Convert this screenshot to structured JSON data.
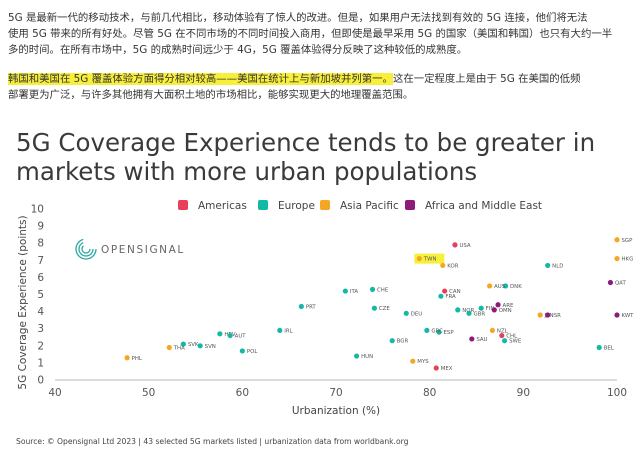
{
  "article": {
    "para1_lines": [
      "5G 是最新一代的移动技术，与前几代相比，移动体验有了惊人的改进。但是，如果用户无法找到有效的 5G 连接，他们将无法",
      "使用 5G 带来的所有好处。尽管 5G 在不同市场的不同时间投入商用，但即使是最早采用 5G 的国家（美国和韩国）也只有大约一半",
      "多的时间。在所有市场中，5G 的成熟时间远少于 4G，5G 覆盖体验得分反映了这种较低的成熟度。"
    ],
    "para2_highlight": "韩国和美国在 5G 覆盖体验方面得分相对较高——美国在统计上与新加坡并列第一。",
    "para2_rest": "这在一定程度上是由于 5G 在美国的低频",
    "para2_line2": "部署更为广泛，与许多其他拥有大面积土地的市场相比，能够实现更大的地理覆盖范围。"
  },
  "chart_data": {
    "type": "scatter",
    "title_lines": [
      "5G Coverage Experience tends to be greater in",
      "markets with more urban populations"
    ],
    "xlabel": "Urbanization (%)",
    "ylabel": "5G Coverage Experience (points)",
    "xlim": [
      40,
      100
    ],
    "ylim": [
      0,
      10
    ],
    "xticks": [
      40,
      50,
      60,
      70,
      80,
      90,
      100
    ],
    "yticks": [
      0,
      1,
      2,
      3,
      4,
      5,
      6,
      7,
      8,
      9,
      10
    ],
    "grid": false,
    "legend_position": "top",
    "logo_text": "OPENSIGNAL",
    "series": [
      {
        "name": "Americas",
        "color": "#e8405a"
      },
      {
        "name": "Europe",
        "color": "#14b8a6"
      },
      {
        "name": "Asia Pacific",
        "color": "#f5a623"
      },
      {
        "name": "Africa and Middle East",
        "color": "#8e1a7c"
      }
    ],
    "points": [
      {
        "label": "USA",
        "x": 82.7,
        "y": 7.9,
        "series": "Americas"
      },
      {
        "label": "CAN",
        "x": 81.6,
        "y": 5.2,
        "series": "Americas"
      },
      {
        "label": "CHL",
        "x": 87.7,
        "y": 2.6,
        "series": "Americas"
      },
      {
        "label": "MEX",
        "x": 80.7,
        "y": 0.7,
        "series": "Americas"
      },
      {
        "label": "PRT",
        "x": 66.3,
        "y": 4.3,
        "series": "Europe"
      },
      {
        "label": "ITA",
        "x": 71.0,
        "y": 5.2,
        "series": "Europe"
      },
      {
        "label": "CHE",
        "x": 73.9,
        "y": 5.3,
        "series": "Europe"
      },
      {
        "label": "CZE",
        "x": 74.1,
        "y": 4.2,
        "series": "Europe"
      },
      {
        "label": "DEU",
        "x": 77.5,
        "y": 3.9,
        "series": "Europe"
      },
      {
        "label": "FRA",
        "x": 81.2,
        "y": 4.9,
        "series": "Europe"
      },
      {
        "label": "NOR",
        "x": 83.0,
        "y": 4.1,
        "series": "Europe"
      },
      {
        "label": "FIN",
        "x": 85.5,
        "y": 4.2,
        "series": "Europe"
      },
      {
        "label": "GBR",
        "x": 84.2,
        "y": 3.9,
        "series": "Europe"
      },
      {
        "label": "DNK",
        "x": 88.1,
        "y": 5.5,
        "series": "Europe"
      },
      {
        "label": "NLD",
        "x": 92.6,
        "y": 6.7,
        "series": "Europe"
      },
      {
        "label": "SWE",
        "x": 88.0,
        "y": 2.3,
        "series": "Europe"
      },
      {
        "label": "ESP",
        "x": 81.0,
        "y": 2.8,
        "series": "Europe"
      },
      {
        "label": "GRC",
        "x": 79.7,
        "y": 2.9,
        "series": "Europe"
      },
      {
        "label": "BGR",
        "x": 76.0,
        "y": 2.3,
        "series": "Europe"
      },
      {
        "label": "HUN",
        "x": 72.2,
        "y": 1.4,
        "series": "Europe"
      },
      {
        "label": "IRL",
        "x": 64.0,
        "y": 2.9,
        "series": "Europe"
      },
      {
        "label": "POL",
        "x": 60.0,
        "y": 1.7,
        "series": "Europe"
      },
      {
        "label": "HRV",
        "x": 57.6,
        "y": 2.7,
        "series": "Europe"
      },
      {
        "label": "AUT",
        "x": 58.7,
        "y": 2.6,
        "series": "Europe"
      },
      {
        "label": "SVK",
        "x": 53.7,
        "y": 2.1,
        "series": "Europe"
      },
      {
        "label": "SVN",
        "x": 55.5,
        "y": 2.0,
        "series": "Europe"
      },
      {
        "label": "BEL",
        "x": 98.1,
        "y": 1.9,
        "series": "Europe"
      },
      {
        "label": "SGP",
        "x": 100.0,
        "y": 8.2,
        "series": "Asia Pacific"
      },
      {
        "label": "HKG",
        "x": 100.0,
        "y": 7.1,
        "series": "Asia Pacific"
      },
      {
        "label": "TWN",
        "x": 78.9,
        "y": 7.1,
        "series": "Asia Pacific"
      },
      {
        "label": "KOR",
        "x": 81.4,
        "y": 6.7,
        "series": "Asia Pacific"
      },
      {
        "label": "AUS",
        "x": 86.4,
        "y": 5.5,
        "series": "Asia Pacific"
      },
      {
        "label": "JPN",
        "x": 91.8,
        "y": 3.8,
        "series": "Asia Pacific"
      },
      {
        "label": "NZL",
        "x": 86.7,
        "y": 2.9,
        "series": "Asia Pacific"
      },
      {
        "label": "MYS",
        "x": 78.2,
        "y": 1.1,
        "series": "Asia Pacific"
      },
      {
        "label": "THA",
        "x": 52.2,
        "y": 1.9,
        "series": "Asia Pacific"
      },
      {
        "label": "PHL",
        "x": 47.7,
        "y": 1.3,
        "series": "Asia Pacific"
      },
      {
        "label": "QAT",
        "x": 99.3,
        "y": 5.7,
        "series": "Africa and Middle East"
      },
      {
        "label": "ARE",
        "x": 87.3,
        "y": 4.4,
        "series": "Africa and Middle East"
      },
      {
        "label": "OMN",
        "x": 86.9,
        "y": 4.1,
        "series": "Africa and Middle East"
      },
      {
        "label": "ISR",
        "x": 92.6,
        "y": 3.8,
        "series": "Africa and Middle East"
      },
      {
        "label": "KWT",
        "x": 100.0,
        "y": 3.8,
        "series": "Africa and Middle East"
      },
      {
        "label": "SAU",
        "x": 84.5,
        "y": 2.4,
        "series": "Africa and Middle East"
      }
    ],
    "highlight_label": "TWN"
  },
  "source_text": "Source: © Opensignal Ltd 2023 | 43 selected 5G markets listed | urbanization data from worldbank.org"
}
